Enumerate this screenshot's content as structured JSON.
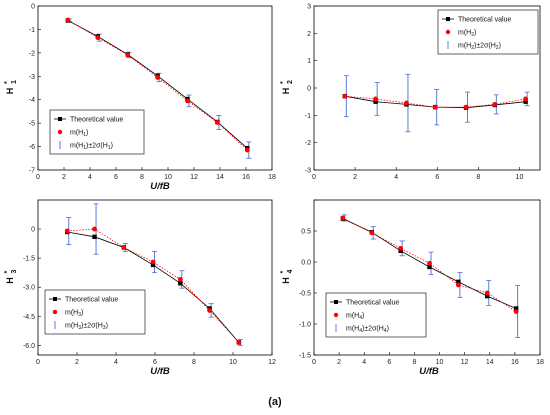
{
  "caption": "(a)",
  "colors": {
    "theoretical": "#000000",
    "mean": "#ff0000",
    "errorbar": "#4a6fd0"
  },
  "chart_data": [
    {
      "type": "scatter",
      "ylabel": "H",
      "ylabel_sub": "1",
      "xlabel": "U/fB",
      "xlim": [
        0,
        18
      ],
      "ylim": [
        -7,
        0
      ],
      "xticks": [
        0,
        2,
        4,
        6,
        8,
        10,
        12,
        14,
        16,
        18
      ],
      "yticks": [
        0,
        -1,
        -2,
        -3,
        -4,
        -5,
        -6,
        -7
      ],
      "ytick_labels": [
        "0",
        "-1",
        "-2",
        "-3",
        "-4",
        "-5",
        "-6",
        "-7"
      ],
      "legend": {
        "position": "bottom-left",
        "entries": [
          "Theoretical value",
          "m(H",
          "m(H"
        ],
        "entries_sub": [
          "",
          "1",
          "1"
        ],
        "entries_tail": [
          "",
          ")",
          ")±2σ(H"
        ],
        "entries_tail_sub": [
          "",
          "",
          "1"
        ],
        "entries_end": [
          "",
          "",
          ")"
        ]
      },
      "x": [
        2.3,
        4.6,
        6.9,
        9.2,
        11.5,
        13.8,
        16.1
      ],
      "series": [
        {
          "name": "Theoretical value",
          "values": [
            -0.62,
            -1.3,
            -2.07,
            -2.98,
            -3.97,
            -4.95,
            -6.07
          ]
        },
        {
          "name": "m(H1*)",
          "values": [
            -0.6,
            -1.35,
            -2.09,
            -3.05,
            -4.05,
            -4.97,
            -6.15
          ]
        }
      ],
      "error": [
        0.05,
        0.15,
        0.12,
        0.18,
        0.25,
        0.3,
        0.35
      ]
    },
    {
      "type": "scatter",
      "ylabel": "H",
      "ylabel_sub": "2",
      "xlabel": "",
      "xlim": [
        0,
        11
      ],
      "ylim": [
        -3,
        3
      ],
      "xticks": [
        0,
        2,
        4,
        6,
        8,
        10
      ],
      "yticks": [
        3,
        2,
        1,
        0,
        -1,
        -2,
        -3
      ],
      "ytick_labels": [
        "3",
        "2",
        "1",
        "0",
        "-1",
        "-2",
        "-3"
      ],
      "legend": {
        "position": "top-right",
        "entries": [
          "Theoretical value",
          "m(H",
          "m(H"
        ],
        "entries_sub": [
          "",
          "2",
          "2"
        ],
        "entries_tail": [
          "",
          ")",
          ")±2σ(H"
        ],
        "entries_tail_sub": [
          "",
          "",
          "2"
        ],
        "entries_end": [
          "",
          "",
          ")"
        ]
      },
      "x": [
        1.5,
        3.0,
        4.5,
        5.9,
        7.4,
        8.8,
        10.3
      ],
      "series": [
        {
          "name": "Theoretical value",
          "values": [
            -0.3,
            -0.5,
            -0.6,
            -0.7,
            -0.72,
            -0.62,
            -0.5
          ]
        },
        {
          "name": "m(H2*)",
          "values": [
            -0.3,
            -0.4,
            -0.55,
            -0.7,
            -0.7,
            -0.6,
            -0.4
          ]
        }
      ],
      "error": [
        0.75,
        0.6,
        1.05,
        0.65,
        0.55,
        0.35,
        0.25
      ]
    },
    {
      "type": "scatter",
      "ylabel": "H",
      "ylabel_sub": "3",
      "xlabel": "U/fB",
      "xlim": [
        0,
        12
      ],
      "ylim": [
        -6.5,
        1.5
      ],
      "xticks": [
        0,
        2,
        4,
        6,
        8,
        10,
        12
      ],
      "yticks": [
        0,
        -1.5,
        -3,
        -4.5,
        -6
      ],
      "ytick_labels": [
        "0",
        "-1.5",
        "-3.0",
        "-4.5",
        "-6.0"
      ],
      "legend": {
        "position": "bottom-left",
        "entries": [
          "Theoretical value",
          "m(H",
          "m(H"
        ],
        "entries_sub": [
          "",
          "3",
          "3"
        ],
        "entries_tail": [
          "",
          ")",
          ")±2σ(H"
        ],
        "entries_tail_sub": [
          "",
          "",
          "3"
        ],
        "entries_end": [
          "",
          "",
          ")"
        ]
      },
      "x": [
        1.5,
        2.9,
        4.4,
        5.9,
        7.3,
        8.8,
        10.3
      ],
      "series": [
        {
          "name": "Theoretical value",
          "values": [
            -0.15,
            -0.4,
            -0.95,
            -1.85,
            -2.8,
            -4.1,
            -5.85
          ]
        },
        {
          "name": "m(H3*)",
          "values": [
            -0.1,
            0.0,
            -0.95,
            -1.7,
            -2.6,
            -4.2,
            -5.85
          ]
        }
      ],
      "error": [
        0.7,
        1.3,
        0.2,
        0.55,
        0.45,
        0.35,
        0.15
      ]
    },
    {
      "type": "scatter",
      "ylabel": "H",
      "ylabel_sub": "4",
      "xlabel": "U/fB",
      "xlim": [
        0,
        18
      ],
      "ylim": [
        -1.5,
        1.0
      ],
      "xticks": [
        0,
        2,
        4,
        6,
        8,
        10,
        12,
        14,
        16,
        18
      ],
      "yticks": [
        1.0,
        0.5,
        0.0,
        -0.5,
        -1.0,
        -1.5
      ],
      "ytick_labels": [
        "",
        "0.5",
        "0.0",
        "-0.5",
        "-1.0",
        "-1.5"
      ],
      "legend": {
        "position": "bottom-right",
        "entries": [
          "Theoretical value",
          "m(H",
          "m(H"
        ],
        "entries_sub": [
          "",
          "4",
          "4"
        ],
        "entries_tail": [
          "",
          ")",
          ")±2σ(H"
        ],
        "entries_tail_sub": [
          "",
          "",
          "4"
        ],
        "entries_end": [
          "",
          "",
          ")"
        ]
      },
      "x": [
        2.3,
        4.6,
        6.9,
        9.2,
        11.5,
        13.8,
        16.1
      ],
      "series": [
        {
          "name": "Theoretical value",
          "values": [
            0.7,
            0.48,
            0.18,
            -0.08,
            -0.32,
            -0.55,
            -0.75
          ]
        },
        {
          "name": "m(H4*)",
          "values": [
            0.71,
            0.47,
            0.22,
            -0.02,
            -0.37,
            -0.5,
            -0.8
          ]
        }
      ],
      "error": [
        0.05,
        0.1,
        0.12,
        0.18,
        0.2,
        0.2,
        0.42
      ]
    }
  ]
}
